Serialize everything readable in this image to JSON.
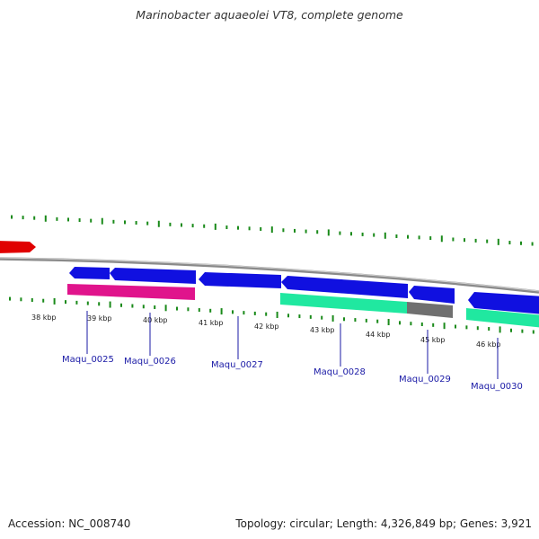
{
  "title": "Marinobacter aquaeolei VT8, complete genome",
  "footer": {
    "accession": "Accession: NC_008740",
    "summary": "Topology: circular; Length: 4,326,849 bp; Genes: 3,921"
  },
  "colors": {
    "cds_forward": "#1010e0",
    "cds_reverse": "#1010e0",
    "rna_or_partial": "#e00000",
    "cog_magenta": "#e0148c",
    "cog_green": "#20e8a0",
    "cog_gray": "#707070",
    "backbone": "#8a8a8a",
    "gc_ticks": "#1a8a1a"
  },
  "kbp_ticks": [
    {
      "label": "38 kbp"
    },
    {
      "label": "39 kbp"
    },
    {
      "label": "40 kbp"
    },
    {
      "label": "41 kbp"
    },
    {
      "label": "42 kbp"
    },
    {
      "label": "43 kbp"
    },
    {
      "label": "44 kbp"
    },
    {
      "label": "45 kbp"
    },
    {
      "label": "46 kbp"
    }
  ],
  "genes": [
    {
      "locus_tag": "Maqu_0025"
    },
    {
      "locus_tag": "Maqu_0026"
    },
    {
      "locus_tag": "Maqu_0027"
    },
    {
      "locus_tag": "Maqu_0028"
    },
    {
      "locus_tag": "Maqu_0029"
    },
    {
      "locus_tag": "Maqu_0030"
    }
  ]
}
